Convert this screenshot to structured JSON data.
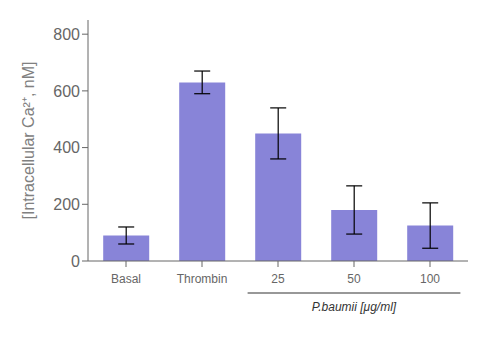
{
  "chart_data": {
    "type": "bar",
    "categories": [
      "Basal",
      "Thrombin",
      "25",
      "50",
      "100"
    ],
    "values": [
      90,
      630,
      450,
      180,
      125
    ],
    "errors": [
      30,
      40,
      90,
      85,
      80
    ],
    "ylim": [
      0,
      850
    ],
    "yticks": [
      0,
      200,
      400,
      600,
      800
    ],
    "ylabel": "[Intracellular Ca²⁺, nM]",
    "annotation": {
      "text": "P.baumii [μg/ml]",
      "categories": [
        "25",
        "50",
        "100"
      ]
    },
    "grid": false
  }
}
